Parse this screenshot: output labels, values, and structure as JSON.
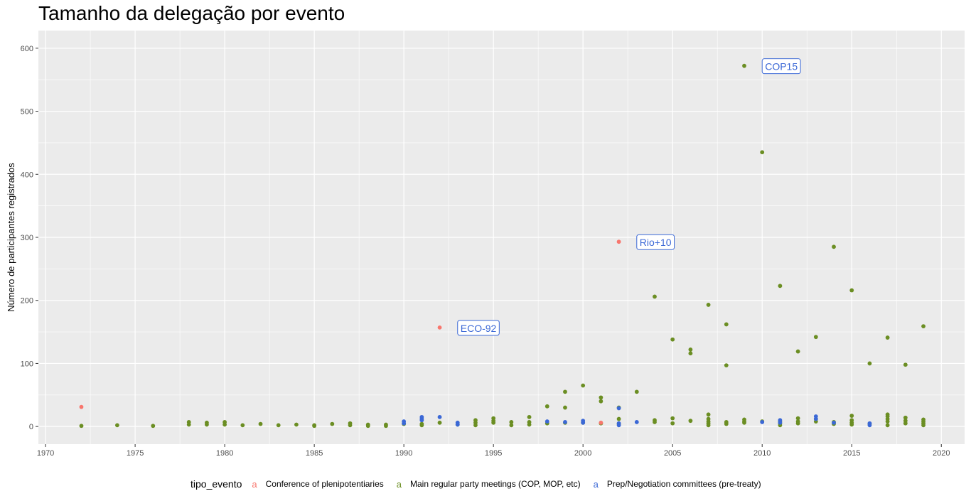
{
  "chart_data": {
    "type": "scatter",
    "title": "Tamanho da delegação por evento",
    "xlabel": "",
    "ylabel": "Número de participantes registrados",
    "xlim": [
      1969.6,
      2021.3
    ],
    "ylim": [
      -28,
      628
    ],
    "x_ticks": [
      1970,
      1975,
      1980,
      1985,
      1990,
      1995,
      2000,
      2005,
      2010,
      2015,
      2020
    ],
    "y_ticks": [
      0,
      100,
      200,
      300,
      400,
      500,
      600
    ],
    "grid": true,
    "legend": {
      "title": "tipo_evento",
      "placement": "bottom",
      "key_glyph": "a",
      "entries": [
        {
          "label": "Conference of plenipotentiaries",
          "color": "#F8766D"
        },
        {
          "label": "Main regular party meetings (COP, MOP, etc)",
          "color": "#6B8E23"
        },
        {
          "label": "Prep/Negotiation committees (pre-treaty)",
          "color": "#3B68D6"
        }
      ]
    },
    "series": [
      {
        "name": "Conference of plenipotentiaries",
        "color": "#F8766D",
        "points": [
          [
            1972,
            31
          ],
          [
            1992,
            157
          ],
          [
            2001,
            6
          ],
          [
            2002,
            293
          ]
        ]
      },
      {
        "name": "Main regular party meetings (COP, MOP, etc)",
        "color": "#6B8E23",
        "points": [
          [
            1972,
            1
          ],
          [
            1974,
            2
          ],
          [
            1976,
            1
          ],
          [
            1978,
            7
          ],
          [
            1978,
            3
          ],
          [
            1979,
            6
          ],
          [
            1979,
            3
          ],
          [
            1980,
            7
          ],
          [
            1980,
            3
          ],
          [
            1981,
            2
          ],
          [
            1982,
            4
          ],
          [
            1983,
            2
          ],
          [
            1984,
            3
          ],
          [
            1985,
            2
          ],
          [
            1985,
            1
          ],
          [
            1986,
            4
          ],
          [
            1987,
            5
          ],
          [
            1987,
            2
          ],
          [
            1988,
            3
          ],
          [
            1988,
            1
          ],
          [
            1989,
            3
          ],
          [
            1989,
            1
          ],
          [
            1990,
            4
          ],
          [
            1991,
            4
          ],
          [
            1991,
            2
          ],
          [
            1992,
            6
          ],
          [
            1993,
            3
          ],
          [
            1994,
            10
          ],
          [
            1994,
            6
          ],
          [
            1994,
            2
          ],
          [
            1995,
            13
          ],
          [
            1995,
            9
          ],
          [
            1995,
            6
          ],
          [
            1996,
            7
          ],
          [
            1996,
            2
          ],
          [
            1997,
            15
          ],
          [
            1997,
            7
          ],
          [
            1997,
            3
          ],
          [
            1998,
            32
          ],
          [
            1998,
            5
          ],
          [
            1999,
            55
          ],
          [
            1999,
            30
          ],
          [
            1999,
            6
          ],
          [
            2000,
            65
          ],
          [
            2000,
            6
          ],
          [
            2001,
            46
          ],
          [
            2001,
            40
          ],
          [
            2001,
            5
          ],
          [
            2002,
            30
          ],
          [
            2002,
            12
          ],
          [
            2002,
            4
          ],
          [
            2003,
            55
          ],
          [
            2004,
            206
          ],
          [
            2004,
            10
          ],
          [
            2004,
            7
          ],
          [
            2005,
            138
          ],
          [
            2005,
            13
          ],
          [
            2005,
            5
          ],
          [
            2006,
            122
          ],
          [
            2006,
            116
          ],
          [
            2006,
            9
          ],
          [
            2007,
            193
          ],
          [
            2007,
            19
          ],
          [
            2007,
            12
          ],
          [
            2007,
            8
          ],
          [
            2007,
            5
          ],
          [
            2007,
            2
          ],
          [
            2008,
            162
          ],
          [
            2008,
            97
          ],
          [
            2008,
            7
          ],
          [
            2008,
            4
          ],
          [
            2009,
            572
          ],
          [
            2009,
            11
          ],
          [
            2009,
            8
          ],
          [
            2009,
            6
          ],
          [
            2010,
            435
          ],
          [
            2010,
            8
          ],
          [
            2011,
            223
          ],
          [
            2011,
            8
          ],
          [
            2011,
            5
          ],
          [
            2011,
            2
          ],
          [
            2012,
            119
          ],
          [
            2012,
            13
          ],
          [
            2012,
            8
          ],
          [
            2012,
            5
          ],
          [
            2013,
            142
          ],
          [
            2013,
            12
          ],
          [
            2013,
            8
          ],
          [
            2014,
            285
          ],
          [
            2014,
            7
          ],
          [
            2014,
            4
          ],
          [
            2015,
            216
          ],
          [
            2015,
            17
          ],
          [
            2015,
            10
          ],
          [
            2015,
            6
          ],
          [
            2015,
            3
          ],
          [
            2016,
            100
          ],
          [
            2016,
            4
          ],
          [
            2017,
            141
          ],
          [
            2017,
            19
          ],
          [
            2017,
            16
          ],
          [
            2017,
            12
          ],
          [
            2017,
            8
          ],
          [
            2017,
            2
          ],
          [
            2018,
            98
          ],
          [
            2018,
            14
          ],
          [
            2018,
            9
          ],
          [
            2018,
            5
          ],
          [
            2019,
            159
          ],
          [
            2019,
            11
          ],
          [
            2019,
            8
          ],
          [
            2019,
            5
          ],
          [
            2019,
            2
          ]
        ]
      },
      {
        "name": "Prep/Negotiation committees (pre-treaty)",
        "color": "#3B68D6",
        "points": [
          [
            1990,
            8
          ],
          [
            1990,
            5
          ],
          [
            1991,
            15
          ],
          [
            1991,
            12
          ],
          [
            1991,
            10
          ],
          [
            1992,
            15
          ],
          [
            1993,
            6
          ],
          [
            1993,
            3
          ],
          [
            1998,
            8
          ],
          [
            1999,
            7
          ],
          [
            2000,
            9
          ],
          [
            2000,
            6
          ],
          [
            2002,
            29
          ],
          [
            2002,
            5
          ],
          [
            2002,
            2
          ],
          [
            2003,
            7
          ],
          [
            2010,
            7
          ],
          [
            2011,
            10
          ],
          [
            2011,
            6
          ],
          [
            2013,
            16
          ],
          [
            2013,
            12
          ],
          [
            2014,
            6
          ],
          [
            2016,
            5
          ],
          [
            2016,
            2
          ]
        ]
      }
    ],
    "annotations": [
      {
        "text": "ECO-92",
        "x": 1993,
        "y": 157,
        "color": "#3B68D6"
      },
      {
        "text": "Rio+10",
        "x": 2003,
        "y": 293,
        "color": "#3B68D6"
      },
      {
        "text": "COP15",
        "x": 2010,
        "y": 572,
        "color": "#3B68D6"
      }
    ]
  }
}
